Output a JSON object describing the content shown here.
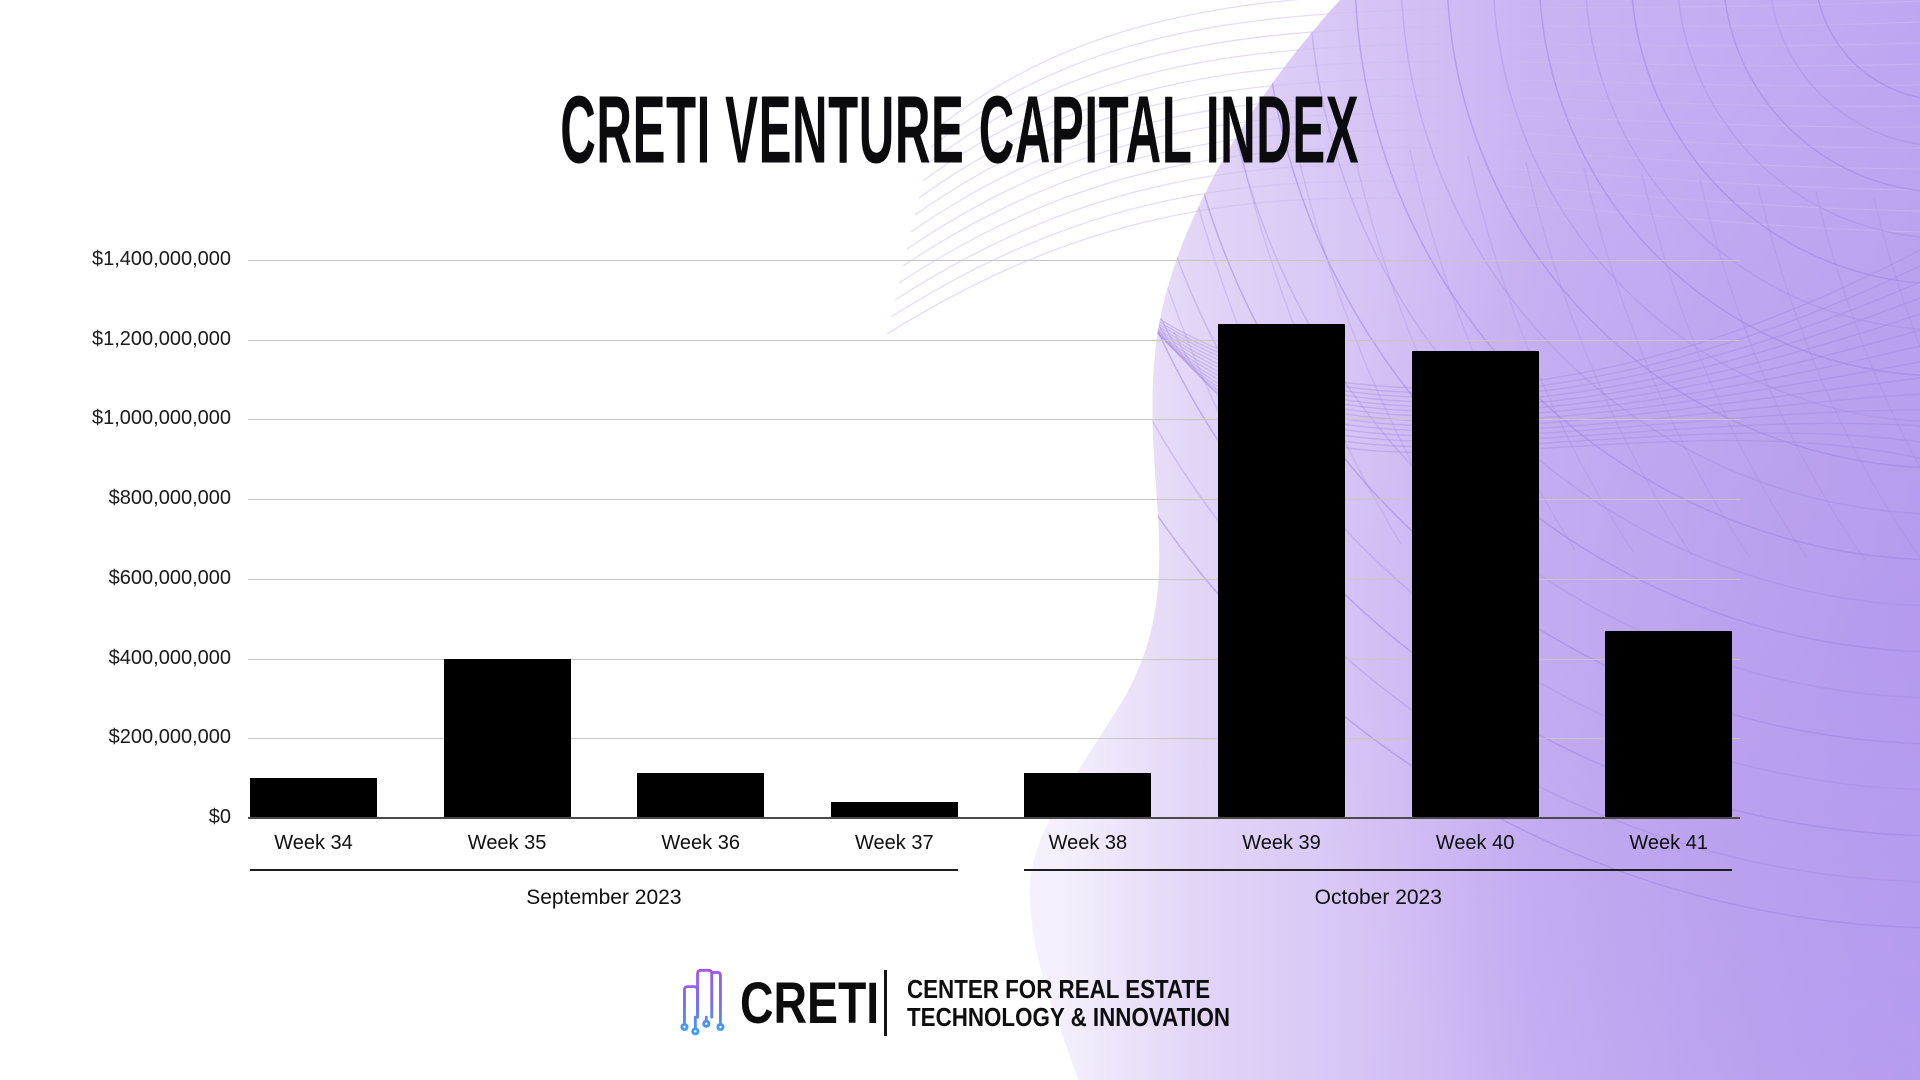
{
  "header": {
    "title": "CRETI VENTURE CAPITAL INDEX"
  },
  "chart_data": {
    "type": "bar",
    "title": "CRETI VENTURE CAPITAL INDEX",
    "categories": [
      "Week 34",
      "Week 35",
      "Week 36",
      "Week 37",
      "Week 38",
      "Week 39",
      "Week 40",
      "Week 41"
    ],
    "values": [
      100000000,
      400000000,
      112000000,
      40000000,
      112000000,
      1240000000,
      1172000000,
      470000000
    ],
    "groups": [
      {
        "label": "September 2023",
        "start": 0,
        "end": 3
      },
      {
        "label": "October 2023",
        "start": 4,
        "end": 7
      }
    ],
    "y_ticks": [
      {
        "value": 1400000000,
        "label": "$1,400,000,000"
      },
      {
        "value": 1200000000,
        "label": "$1,200,000,000"
      },
      {
        "value": 1000000000,
        "label": "$1,000,000,000"
      },
      {
        "value": 800000000,
        "label": "$800,000,000"
      },
      {
        "value": 600000000,
        "label": "$600,000,000"
      },
      {
        "value": 400000000,
        "label": "$400,000,000"
      },
      {
        "value": 200000000,
        "label": "$200,000,000"
      },
      {
        "value": 0,
        "label": "$0"
      }
    ],
    "ylim": [
      0,
      1400000000
    ],
    "xlabel": "",
    "ylabel": "",
    "grid": true,
    "legend_position": "none",
    "bar_color": "#000000",
    "gridline_color": "#c6c6c6",
    "axis_line_color": "#4a4a4a"
  },
  "footer": {
    "brand": "CRETI",
    "org_line1": "CENTER FOR REAL ESTATE",
    "org_line2": "TECHNOLOGY & INNOVATION"
  },
  "theme": {
    "background": "#ffffff",
    "purple_light": "#e6dbf8",
    "purple_mid": "#c7b2f3",
    "purple_deep": "#bfa8f2",
    "swirl_line": "#a387e0",
    "icon_gradient_top": "#a257e8",
    "icon_gradient_bottom": "#32aaf4",
    "text_color": "#0f0f0f"
  }
}
